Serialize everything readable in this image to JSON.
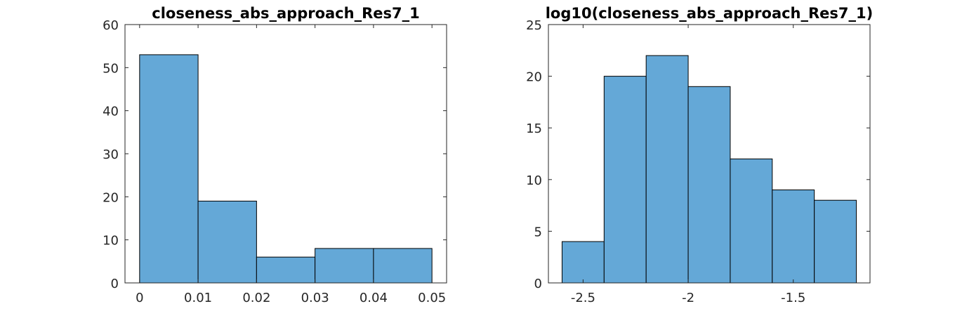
{
  "chart_data": [
    {
      "type": "bar",
      "title": "closeness_abs_approach_Res7_1",
      "xlabel": "",
      "ylabel": "",
      "bin_edges": [
        0,
        0.01,
        0.02,
        0.03,
        0.04,
        0.05
      ],
      "values": [
        53,
        19,
        6,
        8,
        8
      ],
      "xlim": [
        -0.0025,
        0.0525
      ],
      "ylim": [
        0,
        60
      ],
      "xticks": [
        0,
        0.01,
        0.02,
        0.03,
        0.04,
        0.05
      ],
      "xtick_labels": [
        "0",
        "0.01",
        "0.02",
        "0.03",
        "0.04",
        "0.05"
      ],
      "yticks": [
        0,
        10,
        20,
        30,
        40,
        50,
        60
      ],
      "ytick_labels": [
        "0",
        "10",
        "20",
        "30",
        "40",
        "50",
        "60"
      ],
      "bar_color": "#64a8d7",
      "grid": false
    },
    {
      "type": "bar",
      "title": "log10(closeness_abs_approach_Res7_1)",
      "xlabel": "",
      "ylabel": "",
      "bin_edges": [
        -2.6,
        -2.4,
        -2.2,
        -2.0,
        -1.8,
        -1.6,
        -1.4,
        -1.2
      ],
      "values": [
        4,
        20,
        22,
        19,
        12,
        9,
        8
      ],
      "xlim": [
        -2.665,
        -1.135
      ],
      "ylim": [
        0,
        25
      ],
      "xticks": [
        -2.5,
        -2,
        -1.5
      ],
      "xtick_labels": [
        "-2.5",
        "-2",
        "-1.5"
      ],
      "yticks": [
        0,
        5,
        10,
        15,
        20,
        25
      ],
      "ytick_labels": [
        "0",
        "5",
        "10",
        "15",
        "20",
        "25"
      ],
      "bar_color": "#64a8d7",
      "grid": false
    }
  ]
}
